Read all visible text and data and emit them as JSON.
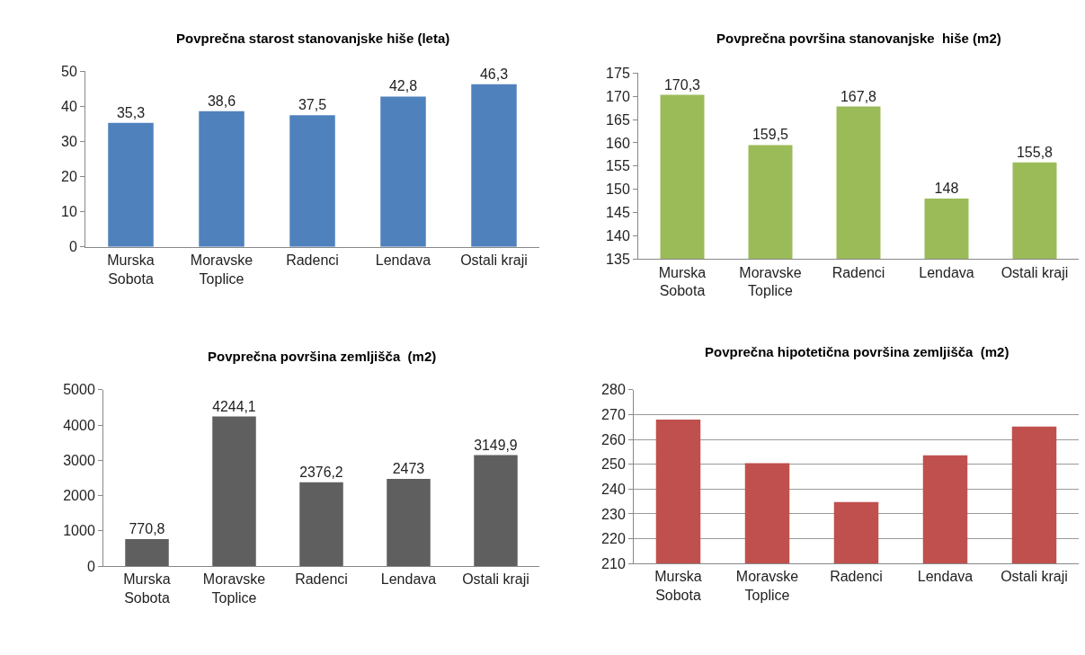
{
  "chart_data": [
    {
      "type": "bar",
      "title": "Povprečna starost stanovanjske hiše (leta)",
      "categories": [
        "Murska\nSobota",
        "Moravske\nToplice",
        "Radenci",
        "Lendava",
        "Ostali kraji"
      ],
      "values": [
        35.3,
        38.6,
        37.5,
        42.8,
        46.3
      ],
      "value_labels": [
        "35,3",
        "38,6",
        "37,5",
        "42,8",
        "46,3"
      ],
      "color": "#4f81bd",
      "ylim": [
        0,
        50
      ],
      "yticks": [
        0,
        10,
        20,
        30,
        40,
        50
      ],
      "grid": false
    },
    {
      "type": "bar",
      "title": "Povprečna površina stanovanjske  hiše (m2)",
      "categories": [
        "Murska\nSobota",
        "Moravske\nToplice",
        "Radenci",
        "Lendava",
        "Ostali kraji"
      ],
      "values": [
        170.3,
        159.5,
        167.8,
        148,
        155.8
      ],
      "value_labels": [
        "170,3",
        "159,5",
        "167,8",
        "148",
        "155,8"
      ],
      "color": "#9bbb59",
      "ylim": [
        135,
        175
      ],
      "yticks": [
        135,
        140,
        145,
        150,
        155,
        160,
        165,
        170,
        175
      ],
      "grid": false
    },
    {
      "type": "bar",
      "title": "Povprečna površina zemljišča  (m2)",
      "categories": [
        "Murska\nSobota",
        "Moravske\nToplice",
        "Radenci",
        "Lendava",
        "Ostali kraji"
      ],
      "values": [
        770.8,
        4244.1,
        2376.2,
        2473,
        3149.9
      ],
      "value_labels": [
        "770,8",
        "4244,1",
        "2376,2",
        "2473",
        "3149,9"
      ],
      "color": "#5f5f5f",
      "ylim": [
        0,
        5000
      ],
      "yticks": [
        0,
        1000,
        2000,
        3000,
        4000,
        5000
      ],
      "grid": false
    },
    {
      "type": "bar",
      "title": "Povprečna hipotetična površina zemljišča  (m2)",
      "categories": [
        "Murska\nSobota",
        "Moravske\nToplice",
        "Radenci",
        "Lendava",
        "Ostali kraji"
      ],
      "values": [
        268.0,
        250.4,
        234.8,
        253.6,
        265.2
      ],
      "color": "#c0504d",
      "ylim": [
        210,
        280
      ],
      "yticks": [
        210,
        220,
        230,
        240,
        250,
        260,
        270,
        280
      ],
      "grid": "y"
    }
  ]
}
